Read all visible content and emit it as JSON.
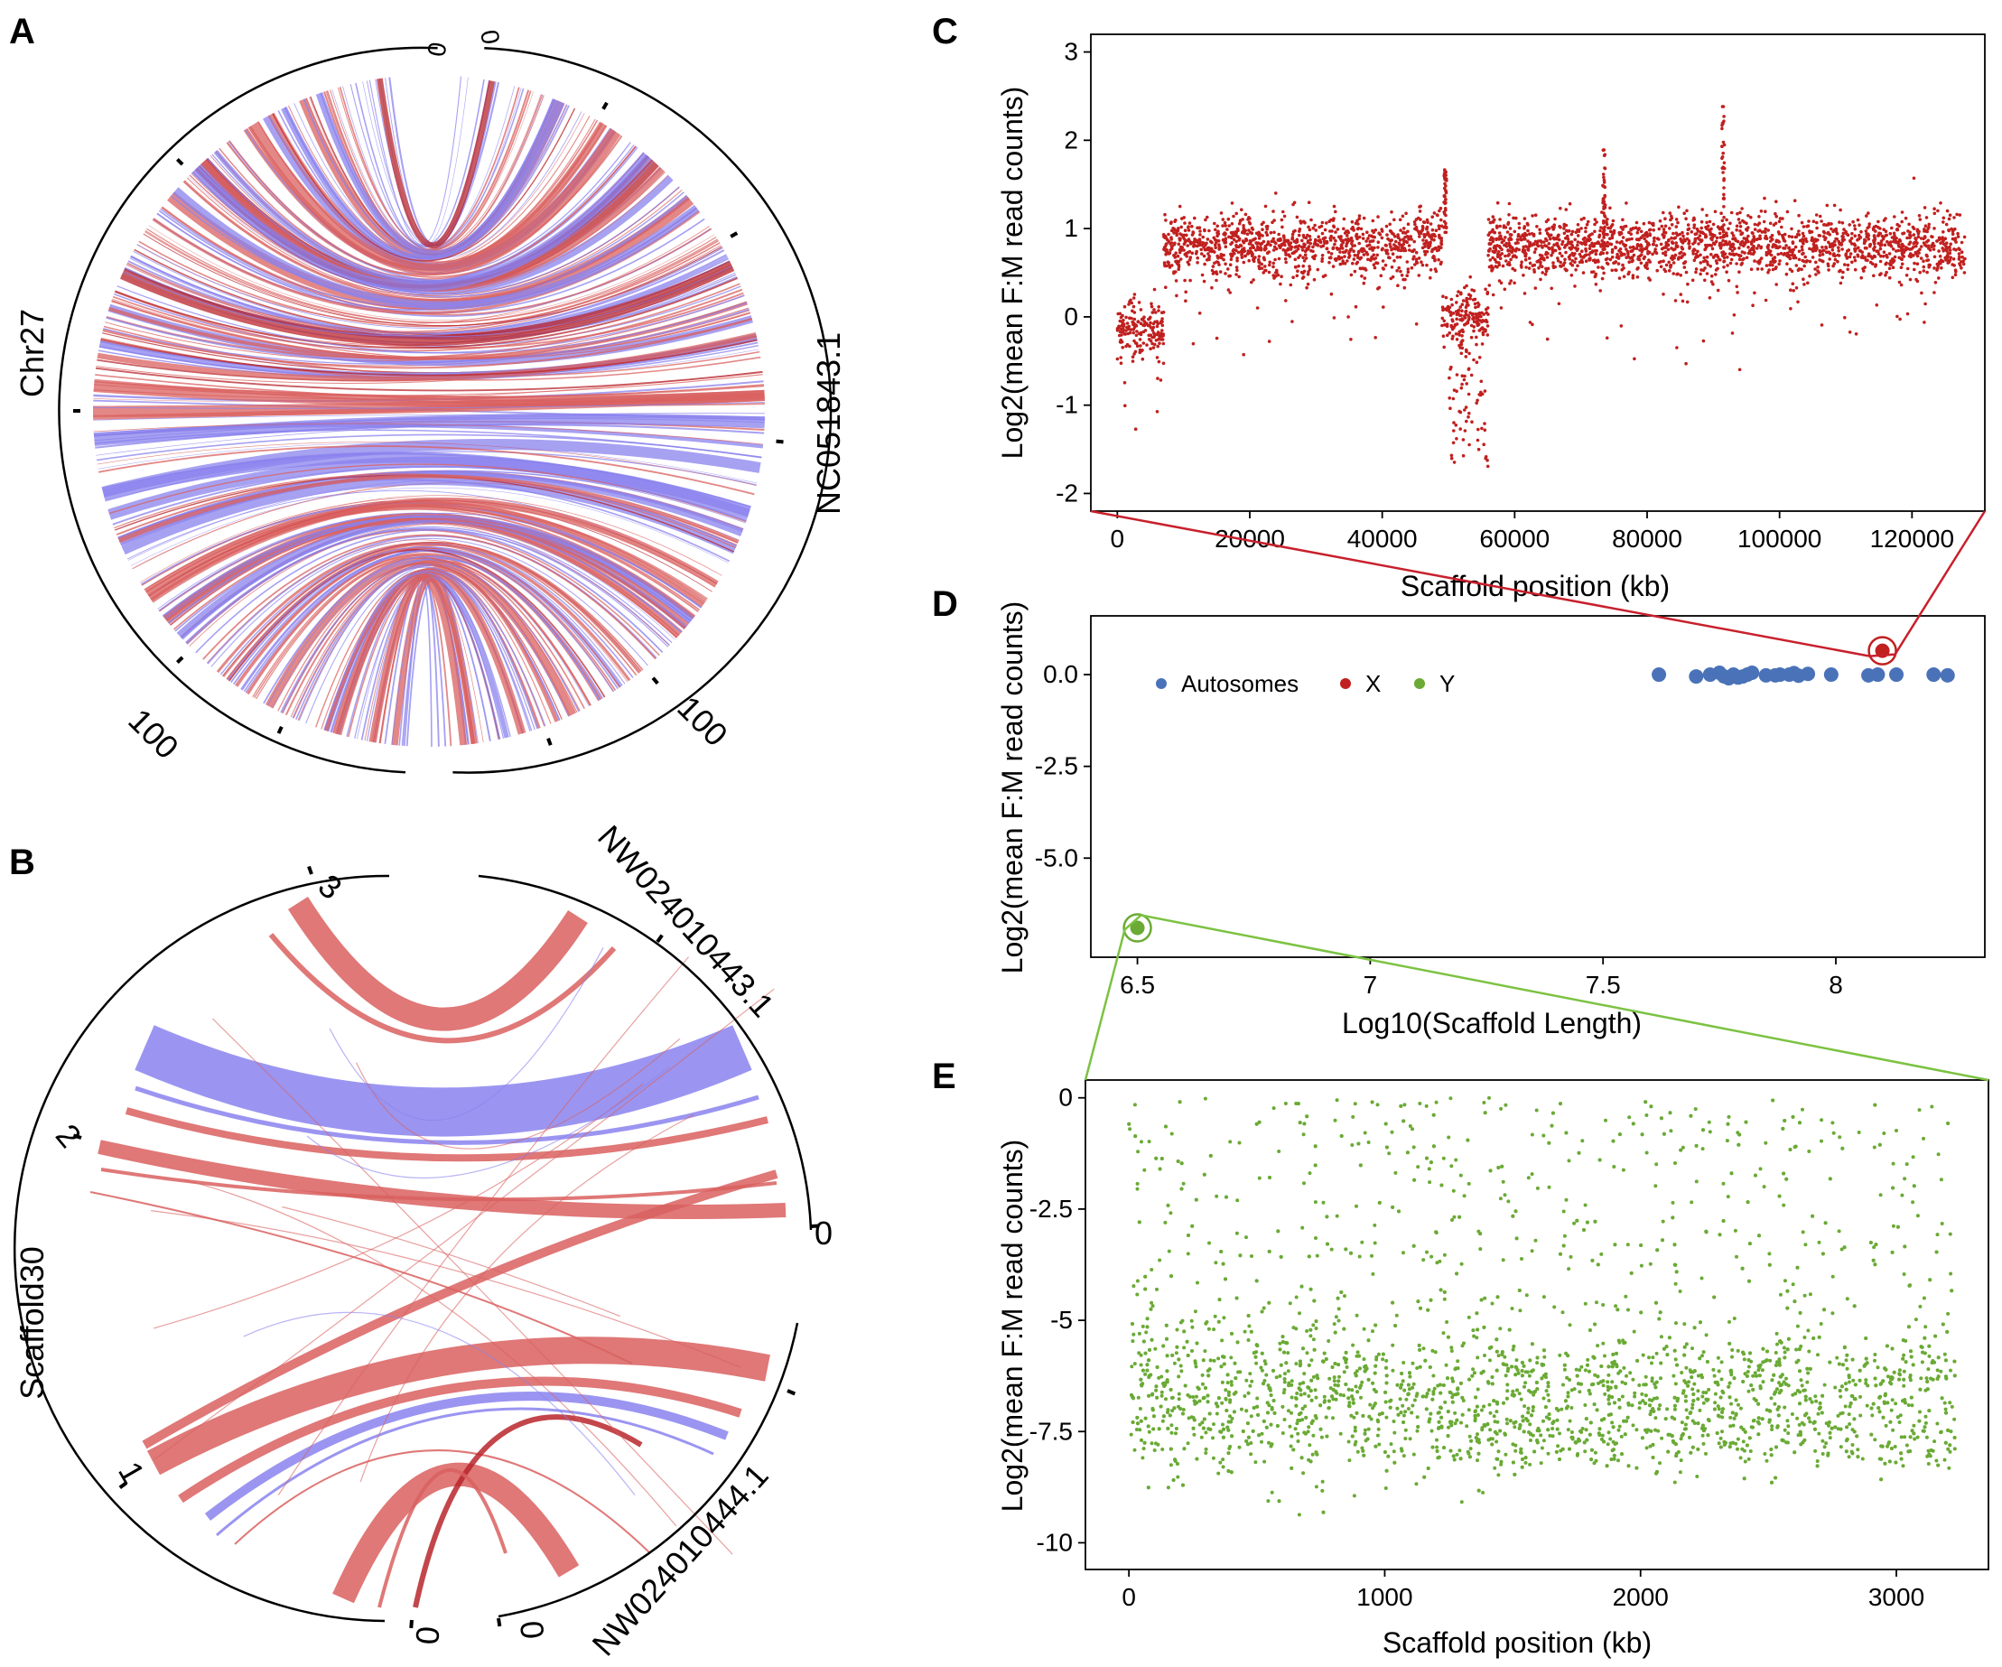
{
  "colors": {
    "chord_red": "#d9605f",
    "chord_blue": "#8a82ee",
    "chord_darkred": "#b8262c",
    "scatter_red": "#c0201f",
    "scatter_green": "#6aaa35",
    "autosome_blue": "#4a72b8",
    "connector_red": "#c8202c",
    "connector_green": "#7cc242"
  },
  "panels": {
    "A": {
      "letter": "A",
      "left_label": "Chr27",
      "right_label": "NC051843.1",
      "ticks": [
        {
          "text": "0",
          "side": "left"
        },
        {
          "text": "0",
          "side": "right"
        },
        {
          "text": "100",
          "side": "left"
        },
        {
          "text": "100",
          "side": "right"
        }
      ]
    },
    "B": {
      "letter": "B",
      "left_label": "Scaffold30",
      "top_right_label": "NW024010443.1",
      "bottom_right_label": "NW024010444.1",
      "ticks": [
        "3",
        "2",
        "1",
        "0",
        "0",
        "0"
      ]
    }
  },
  "chart_data": [
    {
      "panel": "C",
      "letter": "C",
      "type": "scatter",
      "title": "",
      "xlabel": "Scaffold position (kb)",
      "ylabel": "Log2(mean F:M read counts)",
      "xlim": [
        -4000,
        131000
      ],
      "ylim": [
        -2.2,
        3.2
      ],
      "xticks": [
        0,
        20000,
        40000,
        60000,
        80000,
        100000,
        120000
      ],
      "yticks": [
        -2,
        -1,
        0,
        1,
        2,
        3
      ],
      "color": "#c0201f",
      "segments": [
        {
          "x": [
            0,
            7000
          ],
          "mean": -0.15
        },
        {
          "x": [
            7000,
            49000
          ],
          "mean": 0.8
        },
        {
          "x": [
            49000,
            56000
          ],
          "mean": 0.0
        },
        {
          "x": [
            56000,
            128000
          ],
          "mean": 0.8
        }
      ],
      "spikes": [
        {
          "x": 49500,
          "max": 1.7
        },
        {
          "x": 73500,
          "max": 1.9
        },
        {
          "x": 91500,
          "max": 2.4
        }
      ]
    },
    {
      "panel": "D",
      "letter": "D",
      "type": "scatter",
      "title": "",
      "xlabel": "Log10(Scaffold Length)",
      "ylabel": "Log2(mean F:M read counts)",
      "xlim": [
        6.4,
        8.32
      ],
      "ylim": [
        -7.7,
        1.6
      ],
      "xticks": [
        6.5,
        7,
        7.5,
        8
      ],
      "yticks": [
        0.0,
        -2.5,
        -5.0
      ],
      "ytick_labels": [
        "0.0",
        "-2.5",
        "-5.0"
      ],
      "legend": [
        "Autosomes",
        "X",
        "Y"
      ],
      "series": [
        {
          "name": "Autosomes",
          "color": "#4a72b8",
          "x": [
            7.62,
            7.7,
            7.73,
            7.75,
            7.76,
            7.77,
            7.78,
            7.79,
            7.8,
            7.81,
            7.82,
            7.85,
            7.87,
            7.88,
            7.9,
            7.91,
            7.92,
            7.94,
            7.99,
            8.07,
            8.09,
            8.13,
            8.21,
            8.24
          ],
          "y": [
            0.0,
            -0.05,
            0.0,
            0.05,
            -0.05,
            -0.1,
            0.0,
            -0.08,
            -0.05,
            0.0,
            0.05,
            -0.02,
            -0.02,
            0.0,
            0.0,
            0.04,
            -0.03,
            0.02,
            0.0,
            -0.02,
            0.0,
            0.0,
            0.0,
            -0.02
          ]
        },
        {
          "name": "X",
          "color": "#c0201f",
          "x": [
            8.1
          ],
          "y": [
            0.65
          ]
        },
        {
          "name": "Y",
          "color": "#6aaa35",
          "x": [
            6.5
          ],
          "y": [
            -6.9
          ]
        }
      ]
    },
    {
      "panel": "E",
      "letter": "E",
      "type": "scatter",
      "title": "",
      "xlabel": "Scaffold position (kb)",
      "ylabel": "Log2(mean F:M read counts)",
      "xlim": [
        -170,
        3360
      ],
      "ylim": [
        -10.6,
        0.4
      ],
      "xticks": [
        0,
        1000,
        2000,
        3000
      ],
      "yticks": [
        0,
        -2.5,
        -5,
        -7.5,
        -10
      ],
      "ytick_labels": [
        "0",
        "-2.5",
        "-5",
        "-7.5",
        "-10"
      ],
      "color": "#6aaa35",
      "x_extent": [
        0,
        3230
      ],
      "bands": [
        {
          "x": [
            0,
            1000
          ],
          "center": -6.8
        },
        {
          "x": [
            1000,
            1400
          ],
          "center": -7.1
        },
        {
          "x": [
            1400,
            3230
          ],
          "upper": -6.3,
          "lower": -7.5
        }
      ]
    }
  ]
}
